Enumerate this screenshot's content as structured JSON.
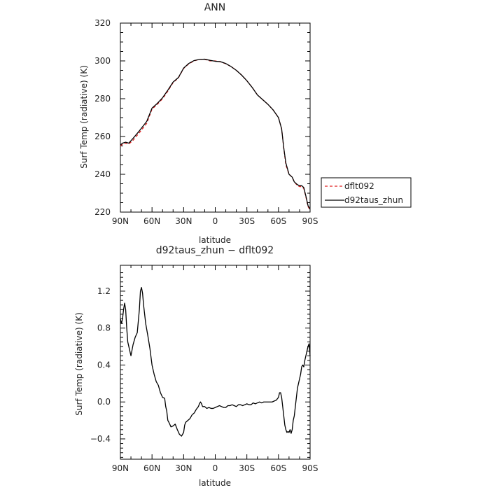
{
  "chart_data": [
    {
      "type": "line",
      "title": "ANN",
      "xlabel": "latitude",
      "ylabel": "Surf Temp (radiative) (K)",
      "xticks": [
        {
          "value": 90,
          "label": "90N"
        },
        {
          "value": 60,
          "label": "60N"
        },
        {
          "value": 30,
          "label": "30N"
        },
        {
          "value": 0,
          "label": "0"
        },
        {
          "value": -30,
          "label": "30S"
        },
        {
          "value": -60,
          "label": "60S"
        },
        {
          "value": -90,
          "label": "90S"
        }
      ],
      "ylim": [
        220,
        320
      ],
      "yticks": [
        "220",
        "240",
        "260",
        "280",
        "300",
        "320"
      ],
      "legend": {
        "position": "right"
      },
      "series": [
        {
          "name": "dflt092",
          "color": "#e02020",
          "dash": "dashed",
          "x": [
            90,
            88,
            85,
            82,
            78,
            72,
            65,
            60,
            55,
            50,
            45,
            40,
            35,
            30,
            25,
            20,
            15,
            10,
            5,
            0,
            -5,
            -10,
            -15,
            -20,
            -25,
            -30,
            -35,
            -40,
            -45,
            -50,
            -55,
            -60,
            -63,
            -65,
            -67,
            -70,
            -73,
            -75,
            -78,
            -80,
            -82,
            -84,
            -86,
            -88,
            -90
          ],
          "y": [
            255,
            256,
            256.5,
            256,
            258,
            262,
            267,
            274.5,
            277,
            280,
            284,
            288.5,
            291,
            296,
            298.5,
            300,
            300.8,
            300.8,
            300,
            300,
            299.5,
            298.5,
            297,
            295,
            292.5,
            289.5,
            286,
            282,
            279.5,
            277,
            274,
            270,
            264,
            254,
            245,
            240,
            238.5,
            236,
            234,
            233.5,
            233.5,
            232.5,
            228,
            223,
            221
          ]
        },
        {
          "name": "d92taus_zhun",
          "color": "#000000",
          "dash": "solid",
          "x": [
            90,
            88,
            85,
            82,
            78,
            72,
            65,
            60,
            55,
            50,
            45,
            40,
            35,
            30,
            25,
            20,
            15,
            10,
            5,
            0,
            -5,
            -10,
            -15,
            -20,
            -25,
            -30,
            -35,
            -40,
            -45,
            -50,
            -55,
            -60,
            -63,
            -65,
            -67,
            -70,
            -73,
            -75,
            -78,
            -80,
            -82,
            -84,
            -86,
            -88,
            -90
          ],
          "y": [
            255.5,
            256.5,
            257,
            256.5,
            259,
            263,
            268,
            275,
            277.5,
            280.5,
            284.5,
            288.8,
            291.2,
            296.2,
            298.7,
            300.2,
            300.8,
            300.9,
            300.3,
            299.8,
            299.6,
            298.6,
            297,
            295,
            292.5,
            289.5,
            286,
            282,
            279.5,
            277,
            274,
            270,
            264,
            254,
            246,
            240,
            238.5,
            236,
            234.5,
            234,
            234,
            233,
            228.5,
            223.5,
            221.5
          ]
        }
      ]
    },
    {
      "type": "line",
      "title": "d92taus_zhun − dflt092",
      "xlabel": "latitude",
      "ylabel": "Surf Temp (radiative) (K)",
      "xticks": [
        {
          "value": 90,
          "label": "90N"
        },
        {
          "value": 60,
          "label": "60N"
        },
        {
          "value": 30,
          "label": "30N"
        },
        {
          "value": 0,
          "label": "0"
        },
        {
          "value": -30,
          "label": "30S"
        },
        {
          "value": -60,
          "label": "60S"
        },
        {
          "value": -90,
          "label": "90S"
        }
      ],
      "ylim": [
        -0.62,
        1.48
      ],
      "yticks": [
        "1.2",
        "0.8",
        "0.4",
        "0.0",
        "−0.4"
      ],
      "ytick_values": [
        1.2,
        0.8,
        0.4,
        0.0,
        -0.4
      ],
      "series": [
        {
          "color": "#000000",
          "dash": "solid",
          "x": [
            90,
            89,
            88,
            87,
            86,
            85,
            84,
            83,
            82,
            80,
            78,
            76,
            74,
            72,
            71,
            70,
            69,
            68,
            67,
            66,
            64,
            62,
            60,
            58,
            56,
            54,
            52,
            50,
            48,
            47,
            46,
            45,
            44,
            42,
            40,
            38,
            36,
            34,
            32,
            30,
            29,
            28,
            26,
            24,
            22,
            20,
            18,
            16,
            15,
            14,
            13,
            12,
            10,
            8,
            6,
            4,
            2,
            0,
            -2,
            -4,
            -6,
            -8,
            -10,
            -12,
            -14,
            -16,
            -18,
            -20,
            -22,
            -24,
            -26,
            -28,
            -30,
            -32,
            -34,
            -36,
            -38,
            -40,
            -42,
            -44,
            -46,
            -48,
            -50,
            -52,
            -54,
            -56,
            -58,
            -60,
            -61,
            -62,
            -63,
            -64,
            -65,
            -66,
            -67,
            -68,
            -69,
            -70,
            -71,
            -72,
            -73,
            -74,
            -75,
            -76,
            -77,
            -78,
            -79,
            -80,
            -81,
            -82,
            -83,
            -84,
            -85,
            -86,
            -87,
            -88,
            -89,
            -90
          ],
          "y": [
            0.9,
            0.85,
            0.9,
            1.0,
            1.07,
            1.0,
            0.8,
            0.65,
            0.6,
            0.5,
            0.62,
            0.7,
            0.75,
            1.0,
            1.2,
            1.24,
            1.18,
            1.05,
            0.95,
            0.85,
            0.72,
            0.58,
            0.4,
            0.3,
            0.22,
            0.18,
            0.1,
            0.05,
            0.04,
            -0.05,
            -0.1,
            -0.2,
            -0.22,
            -0.27,
            -0.26,
            -0.24,
            -0.3,
            -0.35,
            -0.37,
            -0.33,
            -0.25,
            -0.22,
            -0.2,
            -0.18,
            -0.14,
            -0.12,
            -0.08,
            -0.05,
            -0.02,
            0.0,
            -0.02,
            -0.05,
            -0.05,
            -0.07,
            -0.06,
            -0.07,
            -0.07,
            -0.06,
            -0.05,
            -0.04,
            -0.05,
            -0.06,
            -0.06,
            -0.04,
            -0.04,
            -0.03,
            -0.04,
            -0.05,
            -0.03,
            -0.03,
            -0.04,
            -0.03,
            -0.02,
            -0.03,
            -0.03,
            -0.01,
            -0.02,
            -0.01,
            0.0,
            -0.01,
            0.0,
            0.0,
            0.0,
            0.0,
            0.0,
            0.01,
            0.02,
            0.05,
            0.1,
            0.1,
            0.05,
            -0.05,
            -0.15,
            -0.25,
            -0.3,
            -0.33,
            -0.32,
            -0.33,
            -0.3,
            -0.34,
            -0.3,
            -0.2,
            -0.15,
            -0.05,
            0.05,
            0.15,
            0.2,
            0.25,
            0.3,
            0.38,
            0.4,
            0.38,
            0.45,
            0.5,
            0.55,
            0.6,
            0.63,
            0.5
          ]
        }
      ]
    }
  ]
}
